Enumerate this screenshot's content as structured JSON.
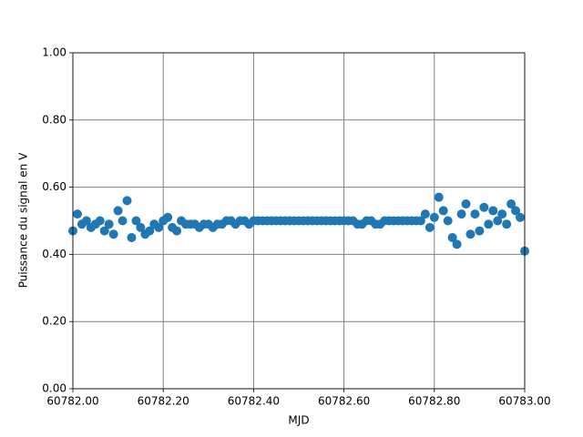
{
  "chart_data": {
    "type": "scatter",
    "xlabel": "MJD",
    "ylabel": "Puissance du signal en V",
    "xlim": [
      60782.0,
      60783.0
    ],
    "xticks": [
      {
        "value": 60782.0,
        "label": "60782.00"
      },
      {
        "value": 60782.2,
        "label": "60782.20"
      },
      {
        "value": 60782.4,
        "label": "60782.40"
      },
      {
        "value": 60782.6,
        "label": "60782.60"
      },
      {
        "value": 60782.8,
        "label": "60782.80"
      },
      {
        "value": 60783.0,
        "label": "60783.00"
      }
    ],
    "ylim": [
      0,
      1
    ],
    "yticks": [
      {
        "value": 0,
        "label": "0.00"
      },
      {
        "value": 0.2,
        "label": "0.20"
      },
      {
        "value": 0.4,
        "label": "0.40"
      },
      {
        "value": 0.6,
        "label": "0.60"
      },
      {
        "value": 0.8,
        "label": "0.80"
      },
      {
        "value": 1,
        "label": "1.00"
      }
    ],
    "grid": true,
    "color": "#1f77b4",
    "x": [
      60782.0,
      60782.01,
      60782.02,
      60782.03,
      60782.04,
      60782.05,
      60782.06,
      60782.07,
      60782.08,
      60782.09,
      60782.1,
      60782.11,
      60782.12,
      60782.13,
      60782.14,
      60782.15,
      60782.16,
      60782.17,
      60782.18,
      60782.19,
      60782.2,
      60782.21,
      60782.22,
      60782.23,
      60782.24,
      60782.25,
      60782.26,
      60782.27,
      60782.28,
      60782.29,
      60782.3,
      60782.31,
      60782.32,
      60782.33,
      60782.34,
      60782.35,
      60782.36,
      60782.37,
      60782.38,
      60782.39,
      60782.4,
      60782.41,
      60782.42,
      60782.43,
      60782.44,
      60782.45,
      60782.46,
      60782.47,
      60782.48,
      60782.49,
      60782.5,
      60782.51,
      60782.52,
      60782.53,
      60782.54,
      60782.55,
      60782.56,
      60782.57,
      60782.58,
      60782.59,
      60782.6,
      60782.61,
      60782.62,
      60782.63,
      60782.64,
      60782.65,
      60782.66,
      60782.67,
      60782.68,
      60782.69,
      60782.7,
      60782.71,
      60782.72,
      60782.73,
      60782.74,
      60782.75,
      60782.76,
      60782.77,
      60782.78,
      60782.79,
      60782.8,
      60782.81,
      60782.82,
      60782.83,
      60782.84,
      60782.85,
      60782.86,
      60782.87,
      60782.88,
      60782.89,
      60782.9,
      60782.91,
      60782.92,
      60782.93,
      60782.94,
      60782.95,
      60782.96,
      60782.97,
      60782.98,
      60782.99,
      60783.0
    ],
    "values": [
      0.47,
      0.52,
      0.49,
      0.5,
      0.48,
      0.49,
      0.5,
      0.47,
      0.49,
      0.46,
      0.53,
      0.5,
      0.56,
      0.45,
      0.5,
      0.48,
      0.46,
      0.47,
      0.49,
      0.48,
      0.5,
      0.51,
      0.48,
      0.47,
      0.5,
      0.49,
      0.49,
      0.49,
      0.48,
      0.49,
      0.49,
      0.48,
      0.49,
      0.49,
      0.5,
      0.5,
      0.49,
      0.5,
      0.5,
      0.49,
      0.5,
      0.5,
      0.5,
      0.5,
      0.5,
      0.5,
      0.5,
      0.5,
      0.5,
      0.5,
      0.5,
      0.5,
      0.5,
      0.5,
      0.5,
      0.5,
      0.5,
      0.5,
      0.5,
      0.5,
      0.5,
      0.5,
      0.5,
      0.49,
      0.49,
      0.5,
      0.5,
      0.49,
      0.49,
      0.5,
      0.5,
      0.5,
      0.5,
      0.5,
      0.5,
      0.5,
      0.5,
      0.5,
      0.52,
      0.48,
      0.51,
      0.57,
      0.53,
      0.5,
      0.45,
      0.43,
      0.52,
      0.55,
      0.46,
      0.52,
      0.47,
      0.54,
      0.49,
      0.53,
      0.5,
      0.52,
      0.49,
      0.55,
      0.53,
      0.51,
      0.41
    ]
  }
}
